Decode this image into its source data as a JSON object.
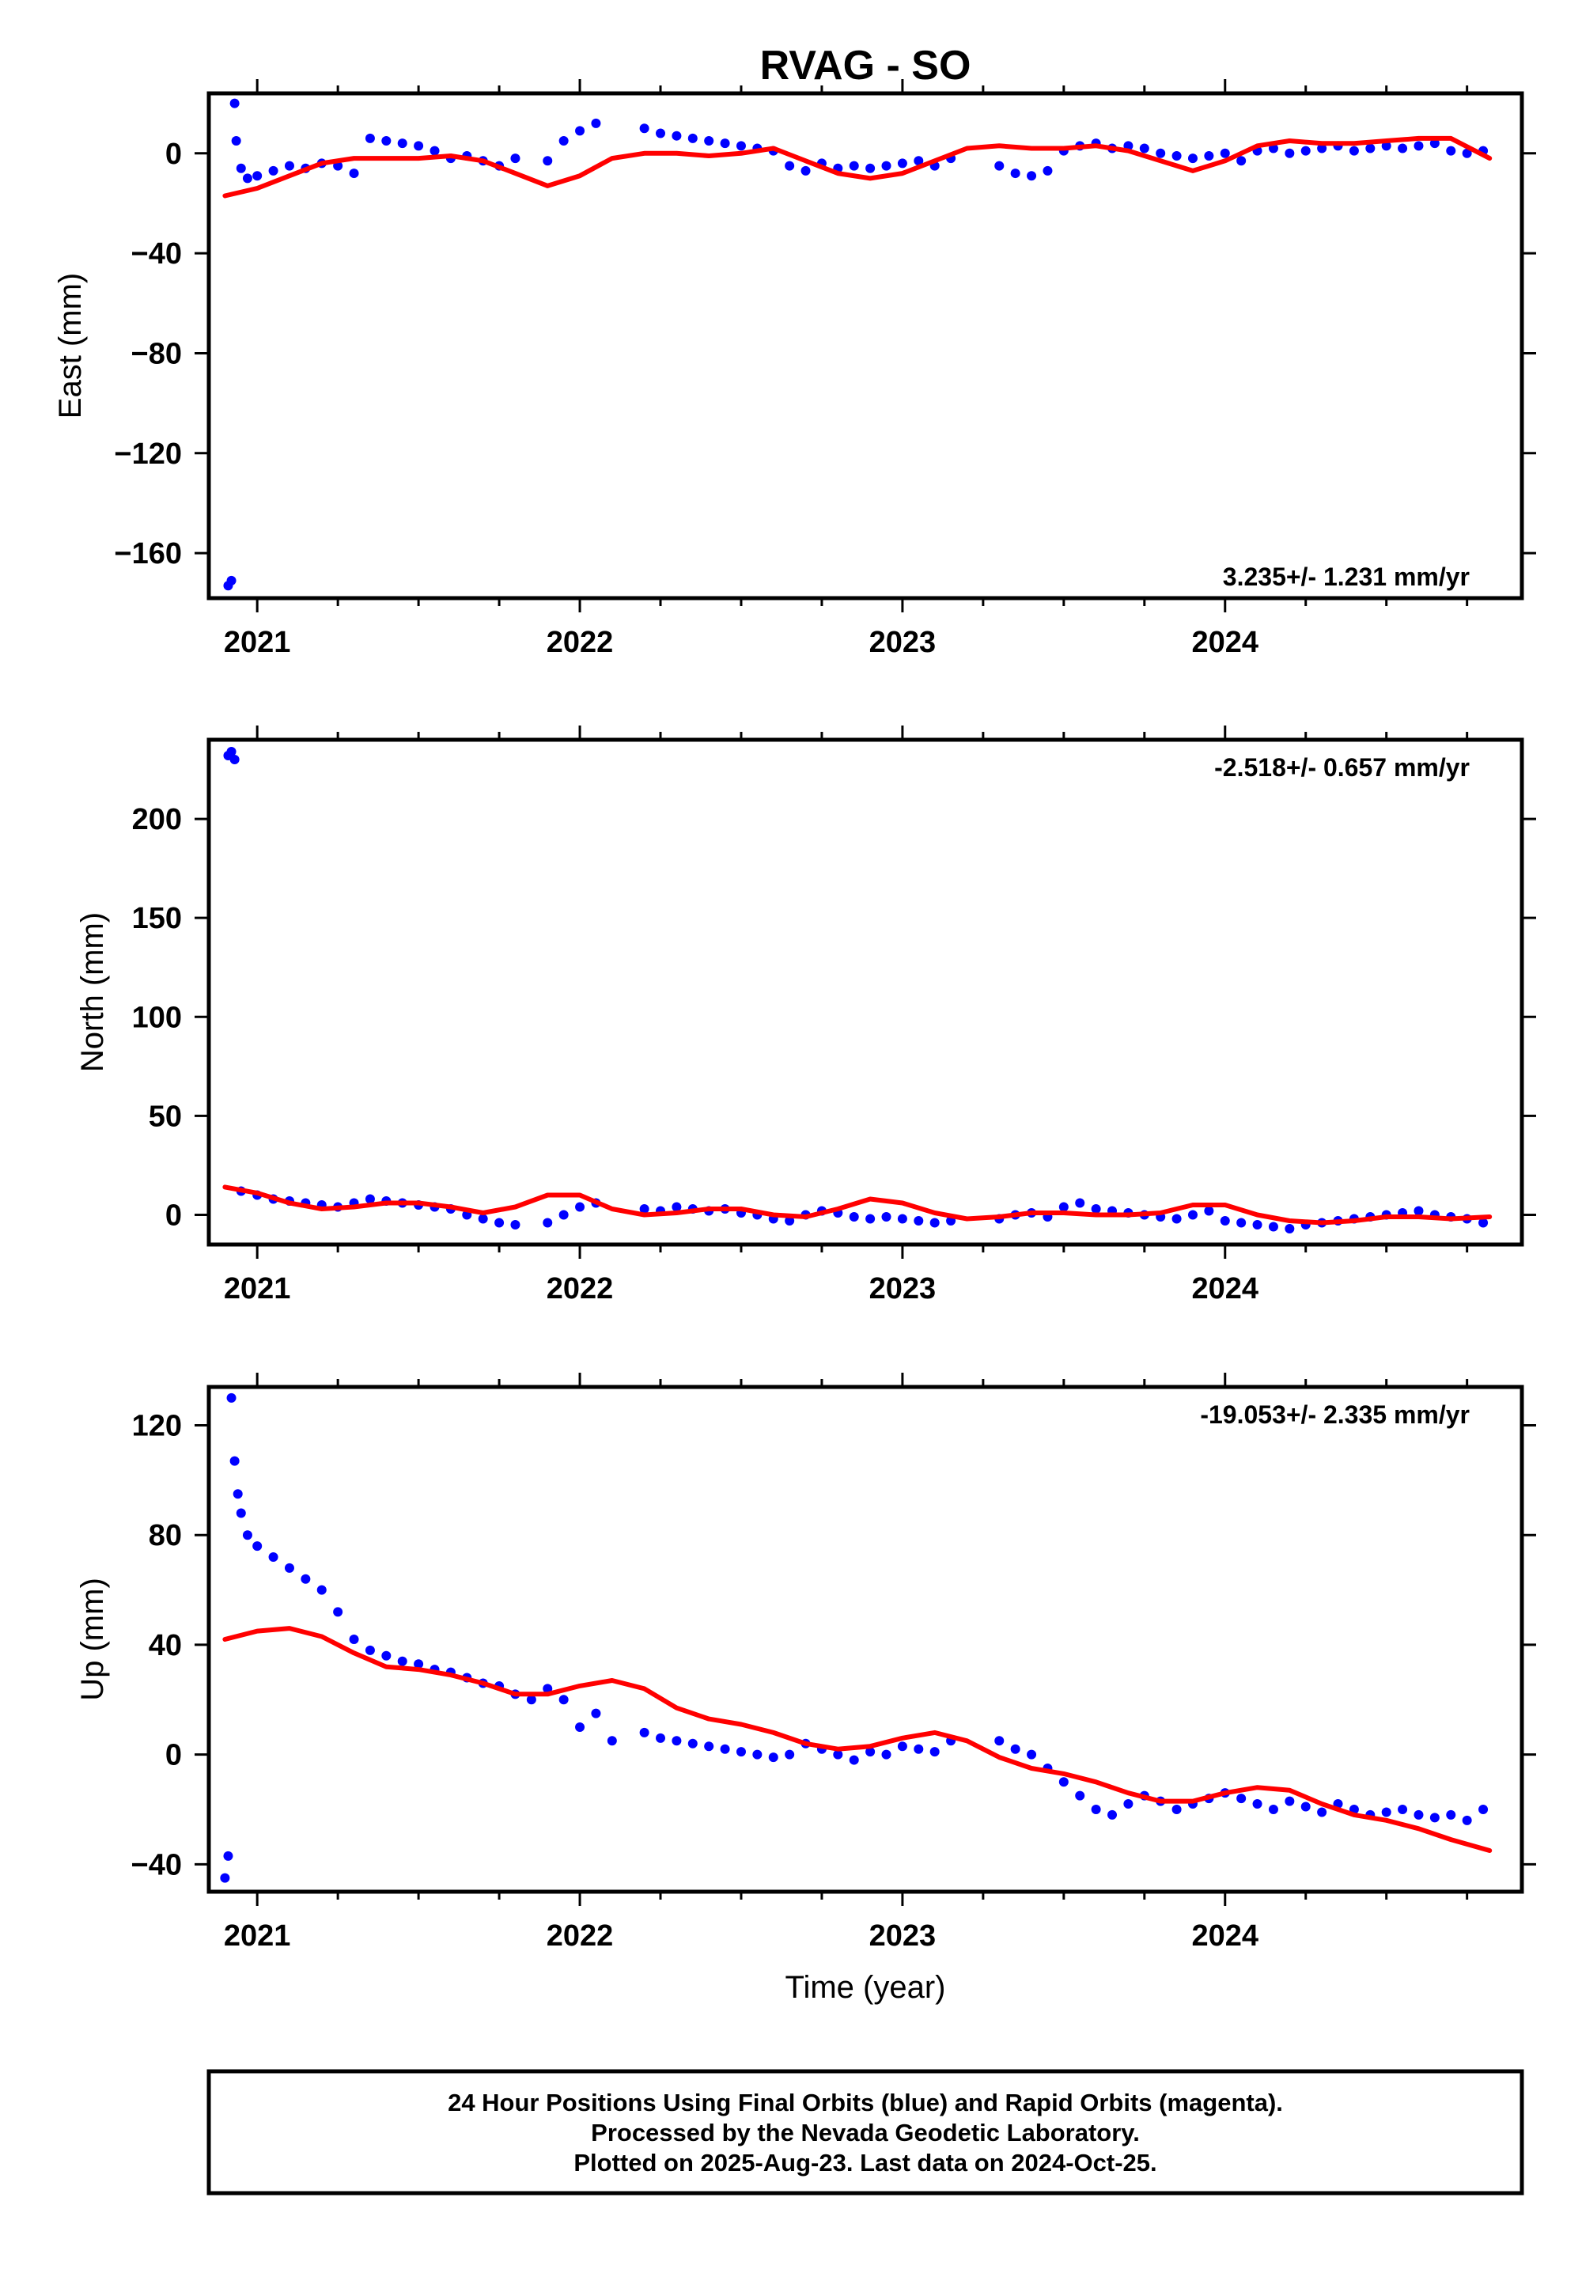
{
  "title": "RVAG - SO",
  "colors": {
    "final_orbits": "#0000ff",
    "model_fit": "#ff0000",
    "frame": "#000000"
  },
  "footer": {
    "line1": "24 Hour Positions Using Final Orbits (blue) and Rapid Orbits (magenta).",
    "line2": "Processed by the Nevada Geodetic Laboratory.",
    "line3": "Plotted on 2025-Aug-23. Last data on 2024-Oct-25."
  },
  "chart_data": [
    {
      "type": "scatter",
      "ylabel": "East (mm)",
      "xlabel": "",
      "xlim": [
        2020.85,
        2024.92
      ],
      "ylim": [
        -178,
        24
      ],
      "x_ticks": [
        2021,
        2022,
        2023,
        2024
      ],
      "x_tick_labels": [
        "2021",
        "2022",
        "2023",
        "2024"
      ],
      "y_ticks": [
        0,
        -40,
        -80,
        -120,
        -160
      ],
      "y_tick_labels": [
        "0",
        "−40",
        "−80",
        "−120",
        "−160"
      ],
      "rate_label": "3.235+/- 1.231 mm/yr",
      "rate_position": "bottom-right",
      "series": [
        {
          "kind": "scatter",
          "color": "#0000ff",
          "x": [
            2020.91,
            2020.92,
            2020.93,
            2020.935,
            2020.95,
            2020.97,
            2021.0,
            2021.05,
            2021.1,
            2021.15,
            2021.2,
            2021.25,
            2021.3,
            2021.35,
            2021.4,
            2021.45,
            2021.5,
            2021.55,
            2021.6,
            2021.65,
            2021.7,
            2021.75,
            2021.8,
            2021.9,
            2021.95,
            2022.0,
            2022.05,
            2022.2,
            2022.25,
            2022.3,
            2022.35,
            2022.4,
            2022.45,
            2022.5,
            2022.55,
            2022.6,
            2022.65,
            2022.7,
            2022.75,
            2022.8,
            2022.85,
            2022.9,
            2022.95,
            2023.0,
            2023.05,
            2023.1,
            2023.15,
            2023.3,
            2023.35,
            2023.4,
            2023.45,
            2023.5,
            2023.55,
            2023.6,
            2023.65,
            2023.7,
            2023.75,
            2023.8,
            2023.85,
            2023.9,
            2023.95,
            2024.0,
            2024.05,
            2024.1,
            2024.15,
            2024.2,
            2024.25,
            2024.3,
            2024.35,
            2024.4,
            2024.45,
            2024.5,
            2024.55,
            2024.6,
            2024.65,
            2024.7,
            2024.75,
            2024.8
          ],
          "y": [
            -173,
            -171,
            20,
            5,
            -6,
            -10,
            -9,
            -7,
            -5,
            -6,
            -4,
            -5,
            -8,
            6,
            5,
            4,
            3,
            1,
            -2,
            -1,
            -3,
            -5,
            -2,
            -3,
            5,
            9,
            12,
            10,
            8,
            7,
            6,
            5,
            4,
            3,
            2,
            1,
            -5,
            -7,
            -4,
            -6,
            -5,
            -6,
            -5,
            -4,
            -3,
            -5,
            -2,
            -5,
            -8,
            -9,
            -7,
            1,
            3,
            4,
            2,
            3,
            2,
            0,
            -1,
            -2,
            -1,
            0,
            -3,
            1,
            2,
            0,
            1,
            2,
            3,
            1,
            2,
            3,
            2,
            3,
            4,
            1,
            0,
            1
          ]
        },
        {
          "kind": "line",
          "color": "#ff0000",
          "x": [
            2020.9,
            2021.0,
            2021.1,
            2021.2,
            2021.3,
            2021.4,
            2021.5,
            2021.6,
            2021.7,
            2021.8,
            2021.9,
            2022.0,
            2022.1,
            2022.2,
            2022.3,
            2022.4,
            2022.5,
            2022.6,
            2022.7,
            2022.8,
            2022.9,
            2023.0,
            2023.1,
            2023.2,
            2023.3,
            2023.4,
            2023.5,
            2023.6,
            2023.7,
            2023.8,
            2023.9,
            2024.0,
            2024.1,
            2024.2,
            2024.3,
            2024.4,
            2024.5,
            2024.6,
            2024.7,
            2024.82
          ],
          "y": [
            -17,
            -14,
            -9,
            -4,
            -2,
            -2,
            -2,
            -1,
            -3,
            -8,
            -13,
            -9,
            -2,
            0,
            0,
            -1,
            0,
            2,
            -3,
            -8,
            -10,
            -8,
            -3,
            2,
            3,
            2,
            2,
            3,
            1,
            -3,
            -7,
            -3,
            3,
            5,
            4,
            4,
            5,
            6,
            6,
            -2
          ]
        }
      ]
    },
    {
      "type": "scatter",
      "ylabel": "North (mm)",
      "xlabel": "",
      "xlim": [
        2020.85,
        2024.92
      ],
      "ylim": [
        -15,
        240
      ],
      "x_ticks": [
        2021,
        2022,
        2023,
        2024
      ],
      "x_tick_labels": [
        "2021",
        "2022",
        "2023",
        "2024"
      ],
      "y_ticks": [
        200,
        150,
        100,
        50,
        0
      ],
      "y_tick_labels": [
        "200",
        "150",
        "100",
        "50",
        "0"
      ],
      "rate_label": "-2.518+/- 0.657 mm/yr",
      "rate_position": "top-right",
      "series": [
        {
          "kind": "scatter",
          "color": "#0000ff",
          "x": [
            2020.91,
            2020.92,
            2020.93,
            2020.95,
            2021.0,
            2021.05,
            2021.1,
            2021.15,
            2021.2,
            2021.25,
            2021.3,
            2021.35,
            2021.4,
            2021.45,
            2021.5,
            2021.55,
            2021.6,
            2021.65,
            2021.7,
            2021.75,
            2021.8,
            2021.9,
            2021.95,
            2022.0,
            2022.05,
            2022.2,
            2022.25,
            2022.3,
            2022.35,
            2022.4,
            2022.45,
            2022.5,
            2022.55,
            2022.6,
            2022.65,
            2022.7,
            2022.75,
            2022.8,
            2022.85,
            2022.9,
            2022.95,
            2023.0,
            2023.05,
            2023.1,
            2023.15,
            2023.3,
            2023.35,
            2023.4,
            2023.45,
            2023.5,
            2023.55,
            2023.6,
            2023.65,
            2023.7,
            2023.75,
            2023.8,
            2023.85,
            2023.9,
            2023.95,
            2024.0,
            2024.05,
            2024.1,
            2024.15,
            2024.2,
            2024.25,
            2024.3,
            2024.35,
            2024.4,
            2024.45,
            2024.5,
            2024.55,
            2024.6,
            2024.65,
            2024.7,
            2024.75,
            2024.8
          ],
          "y": [
            232,
            234,
            230,
            12,
            10,
            8,
            7,
            6,
            5,
            4,
            6,
            8,
            7,
            6,
            5,
            4,
            3,
            0,
            -2,
            -4,
            -5,
            -4,
            0,
            4,
            6,
            3,
            2,
            4,
            3,
            2,
            3,
            1,
            0,
            -2,
            -3,
            0,
            2,
            1,
            -1,
            -2,
            -1,
            -2,
            -3,
            -4,
            -3,
            -2,
            0,
            1,
            -1,
            4,
            6,
            3,
            2,
            1,
            0,
            -1,
            -2,
            0,
            2,
            -3,
            -4,
            -5,
            -6,
            -7,
            -5,
            -4,
            -3,
            -2,
            -1,
            0,
            1,
            2,
            0,
            -1,
            -2,
            -4
          ]
        },
        {
          "kind": "line",
          "color": "#ff0000",
          "x": [
            2020.9,
            2021.0,
            2021.1,
            2021.2,
            2021.3,
            2021.4,
            2021.5,
            2021.6,
            2021.7,
            2021.8,
            2021.9,
            2022.0,
            2022.1,
            2022.2,
            2022.3,
            2022.4,
            2022.5,
            2022.6,
            2022.7,
            2022.8,
            2022.9,
            2023.0,
            2023.1,
            2023.2,
            2023.3,
            2023.4,
            2023.5,
            2023.6,
            2023.7,
            2023.8,
            2023.9,
            2024.0,
            2024.1,
            2024.2,
            2024.3,
            2024.4,
            2024.5,
            2024.6,
            2024.7,
            2024.82
          ],
          "y": [
            14,
            11,
            6,
            3,
            4,
            6,
            6,
            4,
            1,
            4,
            10,
            10,
            3,
            0,
            1,
            3,
            3,
            0,
            -1,
            3,
            8,
            6,
            1,
            -2,
            -1,
            1,
            1,
            0,
            0,
            1,
            5,
            5,
            0,
            -3,
            -4,
            -3,
            -1,
            -1,
            -2,
            -1
          ]
        }
      ]
    },
    {
      "type": "scatter",
      "ylabel": "Up (mm)",
      "xlabel": "Time (year)",
      "xlim": [
        2020.85,
        2024.92
      ],
      "ylim": [
        -50,
        134
      ],
      "x_ticks": [
        2021,
        2022,
        2023,
        2024
      ],
      "x_tick_labels": [
        "2021",
        "2022",
        "2023",
        "2024"
      ],
      "y_ticks": [
        120,
        80,
        40,
        0,
        -40
      ],
      "y_tick_labels": [
        "120",
        "80",
        "40",
        "0",
        "−40"
      ],
      "rate_label": "-19.053+/- 2.335 mm/yr",
      "rate_position": "top-right",
      "series": [
        {
          "kind": "scatter",
          "color": "#0000ff",
          "x": [
            2020.9,
            2020.91,
            2020.92,
            2020.93,
            2020.94,
            2020.95,
            2020.97,
            2021.0,
            2021.05,
            2021.1,
            2021.15,
            2021.2,
            2021.25,
            2021.3,
            2021.35,
            2021.4,
            2021.45,
            2021.5,
            2021.55,
            2021.6,
            2021.65,
            2021.7,
            2021.75,
            2021.8,
            2021.85,
            2021.9,
            2021.95,
            2022.0,
            2022.05,
            2022.1,
            2022.2,
            2022.25,
            2022.3,
            2022.35,
            2022.4,
            2022.45,
            2022.5,
            2022.55,
            2022.6,
            2022.65,
            2022.7,
            2022.75,
            2022.8,
            2022.85,
            2022.9,
            2022.95,
            2023.0,
            2023.05,
            2023.1,
            2023.15,
            2023.3,
            2023.35,
            2023.4,
            2023.45,
            2023.5,
            2023.55,
            2023.6,
            2023.65,
            2023.7,
            2023.75,
            2023.8,
            2023.85,
            2023.9,
            2023.95,
            2024.0,
            2024.05,
            2024.1,
            2024.15,
            2024.2,
            2024.25,
            2024.3,
            2024.35,
            2024.4,
            2024.45,
            2024.5,
            2024.55,
            2024.6,
            2024.65,
            2024.7,
            2024.75,
            2024.8
          ],
          "y": [
            -45,
            -37,
            130,
            107,
            95,
            88,
            80,
            76,
            72,
            68,
            64,
            60,
            52,
            42,
            38,
            36,
            34,
            33,
            31,
            30,
            28,
            26,
            25,
            22,
            20,
            24,
            20,
            10,
            15,
            5,
            8,
            6,
            5,
            4,
            3,
            2,
            1,
            0,
            -1,
            0,
            4,
            2,
            0,
            -2,
            1,
            0,
            3,
            2,
            1,
            5,
            5,
            2,
            0,
            -5,
            -10,
            -15,
            -20,
            -22,
            -18,
            -15,
            -17,
            -20,
            -18,
            -16,
            -14,
            -16,
            -18,
            -20,
            -17,
            -19,
            -21,
            -18,
            -20,
            -22,
            -21,
            -20,
            -22,
            -23,
            -22,
            -24,
            -20
          ]
        },
        {
          "kind": "line",
          "color": "#ff0000",
          "x": [
            2020.9,
            2021.0,
            2021.1,
            2021.2,
            2021.3,
            2021.4,
            2021.5,
            2021.6,
            2021.7,
            2021.8,
            2021.9,
            2022.0,
            2022.1,
            2022.2,
            2022.3,
            2022.4,
            2022.5,
            2022.6,
            2022.7,
            2022.8,
            2022.9,
            2023.0,
            2023.1,
            2023.2,
            2023.3,
            2023.4,
            2023.5,
            2023.6,
            2023.7,
            2023.8,
            2023.9,
            2024.0,
            2024.1,
            2024.2,
            2024.3,
            2024.4,
            2024.5,
            2024.6,
            2024.7,
            2024.82
          ],
          "y": [
            42,
            45,
            46,
            43,
            37,
            32,
            31,
            29,
            26,
            22,
            22,
            25,
            27,
            24,
            17,
            13,
            11,
            8,
            4,
            2,
            3,
            6,
            8,
            5,
            -1,
            -5,
            -7,
            -10,
            -14,
            -17,
            -17,
            -14,
            -12,
            -13,
            -18,
            -22,
            -24,
            -27,
            -31,
            -35
          ]
        }
      ]
    }
  ]
}
